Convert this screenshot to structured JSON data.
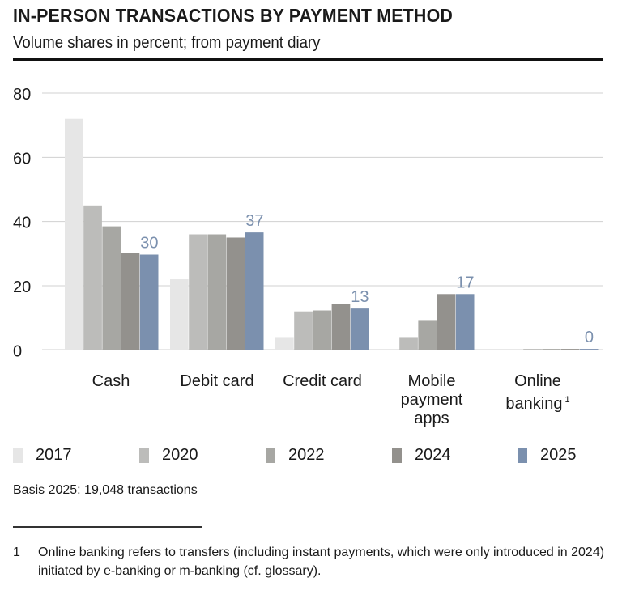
{
  "header": {
    "title": "IN-PERSON TRANSACTIONS BY PAYMENT METHOD",
    "subtitle": "Volume shares in percent; from payment diary"
  },
  "colors": {
    "2017": "#e6e6e6",
    "2020": "#bcbcba",
    "2022": "#a7a7a3",
    "2024": "#93918d",
    "2025": "#7b90ae",
    "grid": "#d0d0d0",
    "value_label": "#7b90ae"
  },
  "chart_data": {
    "type": "bar",
    "title": "IN-PERSON TRANSACTIONS BY PAYMENT METHOD",
    "subtitle": "Volume shares in percent; from payment diary",
    "xlabel": "",
    "ylabel": "",
    "ylim": [
      0,
      80
    ],
    "yticks": [
      0,
      20,
      40,
      60,
      80
    ],
    "grid": true,
    "legend_position": "bottom",
    "categories": [
      "Cash",
      "Debit card",
      "Credit card",
      "Mobile payment apps",
      "Online banking 1"
    ],
    "series": [
      {
        "name": "2017",
        "values": [
          72,
          22,
          4,
          0,
          0
        ]
      },
      {
        "name": "2020",
        "values": [
          45,
          36,
          12,
          4,
          0.2
        ]
      },
      {
        "name": "2022",
        "values": [
          38.5,
          36,
          12.3,
          9.3,
          0.2
        ]
      },
      {
        "name": "2024",
        "values": [
          30.3,
          35,
          14.3,
          17.4,
          0.1
        ]
      },
      {
        "name": "2025",
        "values": [
          29.7,
          36.6,
          12.9,
          17.4,
          0.3
        ]
      }
    ],
    "data_labels_2025": [
      "30",
      "37",
      "13",
      "17",
      "0"
    ]
  },
  "axis": {
    "yticks": [
      "80",
      "60",
      "40",
      "20",
      "0"
    ]
  },
  "categories": {
    "cash": "Cash",
    "debit": "Debit card",
    "credit": "Credit card",
    "mobile_line1": "Mobile",
    "mobile_line2": "payment",
    "mobile_line3": "apps",
    "online_line1": "Online",
    "online_line2": "banking",
    "online_sup": "1"
  },
  "legend": [
    "2017",
    "2020",
    "2022",
    "2024",
    "2025"
  ],
  "basis": "Basis 2025: 19,048 transactions",
  "footnote": {
    "number": "1",
    "text": "Online banking refers to transfers (including instant payments, which were only introduced in 2024) initiated by e-banking or m-banking (cf. glossary)."
  }
}
